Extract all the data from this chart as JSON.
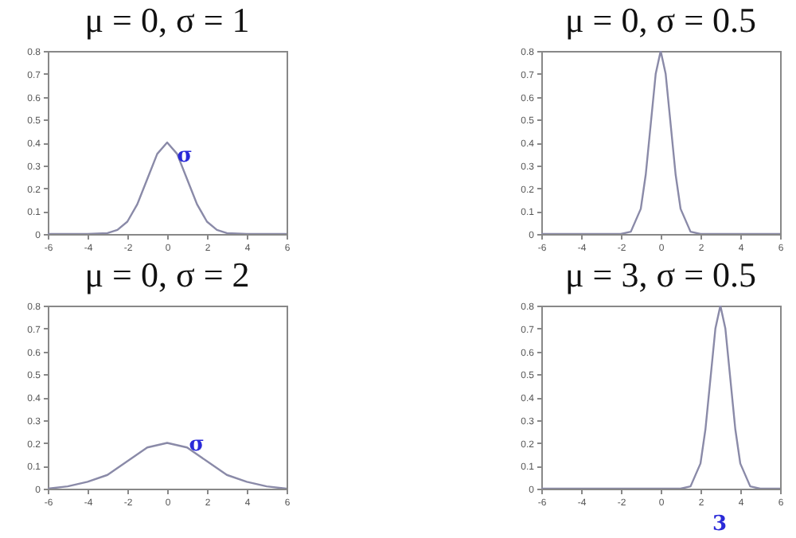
{
  "chart_data": [
    {
      "type": "line",
      "title": "μ = 0, σ = 1",
      "xlim": [
        -6,
        6
      ],
      "xticks": [
        -6,
        -4,
        -2,
        0,
        2,
        4,
        6
      ],
      "ylim": [
        0,
        0.8
      ],
      "yticks": [
        0,
        0.1,
        0.2,
        0.3,
        0.4,
        0.5,
        0.6,
        0.7,
        0.8
      ],
      "x": [
        -6,
        -4,
        -3,
        -2.5,
        -2,
        -1.5,
        -1,
        -0.5,
        0,
        0.5,
        1,
        1.5,
        2,
        2.5,
        3,
        4,
        6
      ],
      "series": [
        {
          "color": "#8a8aa8",
          "values": [
            0,
            0,
            0.004,
            0.018,
            0.054,
            0.13,
            0.24,
            0.35,
            0.4,
            0.35,
            0.24,
            0.13,
            0.054,
            0.018,
            0.004,
            0,
            0
          ]
        }
      ],
      "annotations": [
        {
          "text": "σ",
          "x": 0.4,
          "y": 0.33
        }
      ]
    },
    {
      "type": "line",
      "title": "μ = 0, σ = 0.5",
      "xlim": [
        -6,
        6
      ],
      "xticks": [
        -6,
        -4,
        -2,
        0,
        2,
        4,
        6
      ],
      "ylim": [
        0,
        0.8
      ],
      "yticks": [
        0,
        0.1,
        0.2,
        0.3,
        0.4,
        0.5,
        0.6,
        0.7,
        0.8
      ],
      "x": [
        -6,
        -2,
        -1.5,
        -1,
        -0.75,
        -0.5,
        -0.25,
        0,
        0.25,
        0.5,
        0.75,
        1,
        1.5,
        2,
        6
      ],
      "series": [
        {
          "color": "#8a8aa8",
          "values": [
            0,
            0,
            0.01,
            0.11,
            0.26,
            0.48,
            0.7,
            0.8,
            0.7,
            0.48,
            0.26,
            0.11,
            0.01,
            0,
            0
          ]
        }
      ]
    },
    {
      "type": "line",
      "title": "μ = 0, σ = 2",
      "xlim": [
        -6,
        6
      ],
      "xticks": [
        -6,
        -4,
        -2,
        0,
        2,
        4,
        6
      ],
      "ylim": [
        0,
        0.8
      ],
      "yticks": [
        0,
        0.1,
        0.2,
        0.3,
        0.4,
        0.5,
        0.6,
        0.7,
        0.8
      ],
      "x": [
        -6,
        -5,
        -4,
        -3,
        -2,
        -1,
        0,
        1,
        2,
        3,
        4,
        5,
        6
      ],
      "series": [
        {
          "color": "#8a8aa8",
          "values": [
            0,
            0.01,
            0.03,
            0.06,
            0.12,
            0.18,
            0.2,
            0.18,
            0.12,
            0.06,
            0.03,
            0.01,
            0
          ]
        }
      ],
      "annotations": [
        {
          "text": "σ",
          "x": 1,
          "y": 0.18
        }
      ]
    },
    {
      "type": "line",
      "title": "μ = 3, σ = 0.5",
      "xlim": [
        -6,
        6
      ],
      "xticks": [
        -6,
        -4,
        -2,
        0,
        2,
        4,
        6
      ],
      "ylim": [
        0,
        0.8
      ],
      "yticks": [
        0,
        0.1,
        0.2,
        0.3,
        0.4,
        0.5,
        0.6,
        0.7,
        0.8
      ],
      "x": [
        -6,
        1,
        1.5,
        2,
        2.25,
        2.5,
        2.75,
        3,
        3.25,
        3.5,
        3.75,
        4,
        4.5,
        5,
        6
      ],
      "series": [
        {
          "color": "#8a8aa8",
          "values": [
            0,
            0,
            0.01,
            0.11,
            0.26,
            0.48,
            0.7,
            0.8,
            0.7,
            0.48,
            0.26,
            0.11,
            0.01,
            0,
            0
          ]
        }
      ],
      "annotations": [
        "3"
      ]
    }
  ]
}
